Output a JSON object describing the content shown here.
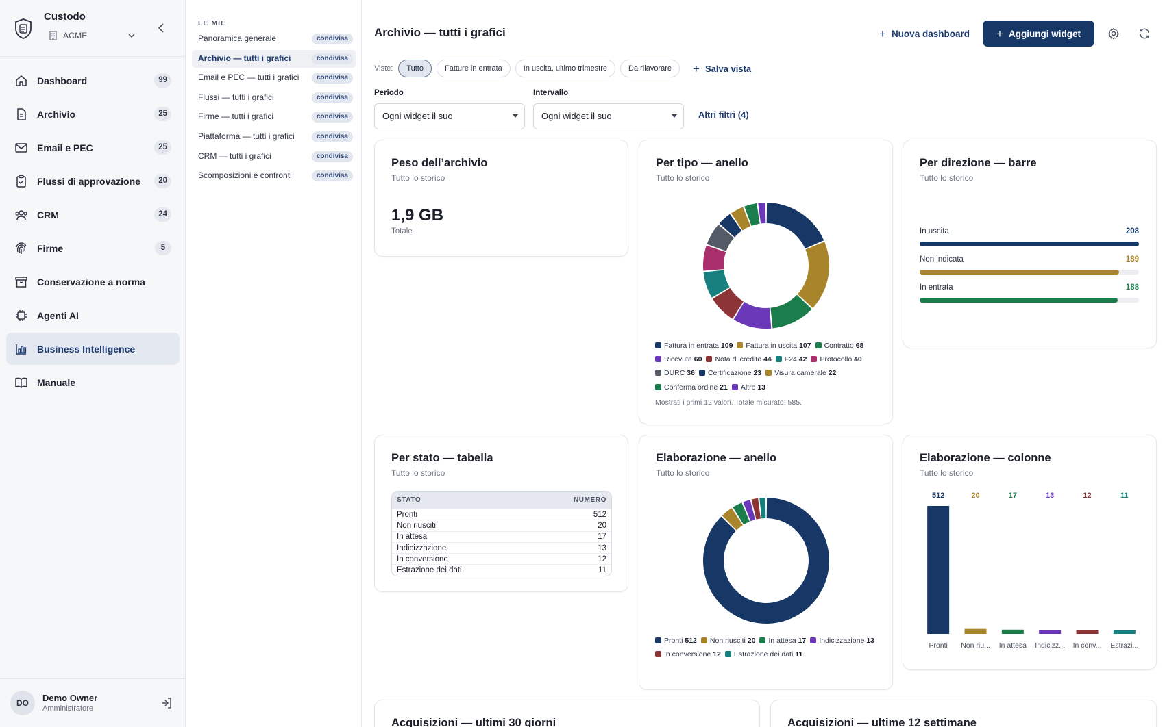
{
  "brand": {
    "name": "Custodo",
    "org": "ACME",
    "icons": {
      "logo": "shield-document-icon",
      "org": "building-icon",
      "chevron": "chevron-down-icon",
      "collapse": "chevron-left-icon"
    }
  },
  "nav": [
    {
      "id": "dashboard",
      "label": "Dashboard",
      "count": "99",
      "icon": "home-icon"
    },
    {
      "id": "archivio",
      "label": "Archivio",
      "count": "25",
      "icon": "document-icon"
    },
    {
      "id": "email-pec",
      "label": "Email e PEC",
      "count": "25",
      "icon": "mail-icon"
    },
    {
      "id": "flussi",
      "label": "Flussi di approvazione",
      "count": "20",
      "icon": "clipboard-check-icon"
    },
    {
      "id": "crm",
      "label": "CRM",
      "count": "24",
      "icon": "users-icon"
    },
    {
      "id": "firme",
      "label": "Firme",
      "count": "5",
      "icon": "fingerprint-icon"
    },
    {
      "id": "conservazione",
      "label": "Conservazione a norma",
      "count": "",
      "icon": "archive-box-icon"
    },
    {
      "id": "agenti",
      "label": "Agenti AI",
      "count": "",
      "icon": "cpu-icon"
    },
    {
      "id": "bi",
      "label": "Business Intelligence",
      "count": "",
      "icon": "bar-chart-icon",
      "active": true
    },
    {
      "id": "manuale",
      "label": "Manuale",
      "count": "",
      "icon": "book-icon"
    }
  ],
  "user": {
    "initials": "DO",
    "name": "Demo Owner",
    "role": "Amministratore",
    "logout_icon": "logout-icon"
  },
  "dashboards": {
    "section_title": "LE MIE",
    "items": [
      {
        "label": "Panoramica generale",
        "tag": "condivisa"
      },
      {
        "label": "Archivio — tutti i grafici",
        "tag": "condivisa",
        "active": true
      },
      {
        "label": "Email e PEC — tutti i grafici",
        "tag": "condivisa"
      },
      {
        "label": "Flussi — tutti i grafici",
        "tag": "condivisa"
      },
      {
        "label": "Firme — tutti i grafici",
        "tag": "condivisa"
      },
      {
        "label": "Piattaforma — tutti i grafici",
        "tag": "condivisa"
      },
      {
        "label": "CRM — tutti i grafici",
        "tag": "condivisa"
      },
      {
        "label": "Scomposizioni e confronti",
        "tag": "condivisa"
      }
    ]
  },
  "header": {
    "title": "Archivio — tutti i grafici",
    "new_dashboard": "Nuova dashboard",
    "add_widget": "Aggiungi widget",
    "settings_icon": "gear-icon",
    "refresh_icon": "refresh-icon"
  },
  "views": {
    "label": "Viste:",
    "chips": [
      "Tutto",
      "Fatture in entrata",
      "In uscita, ultimo trimestre",
      "Da rilavorare"
    ],
    "active": "Tutto",
    "save": "Salva vista"
  },
  "filters": {
    "period": {
      "label": "Periodo",
      "value": "Ogni widget il suo"
    },
    "interval": {
      "label": "Intervallo",
      "value": "Ogni widget il suo"
    },
    "more": "Altri filtri (4)"
  },
  "colors": {
    "navy": "#173767",
    "gold": "#a8842a",
    "green": "#1b7d4b",
    "purple": "#6a38b8",
    "red": "#8c3436",
    "teal": "#17807e",
    "magenta": "#a82e6c",
    "gray": "#555b66"
  },
  "widgets": {
    "peso": {
      "title": "Peso dell’archivio",
      "subtitle": "Tutto lo storico",
      "value": "1,9 GB",
      "value_label": "Totale"
    },
    "tipo": {
      "title": "Per tipo — anello",
      "subtitle": "Tutto lo storico",
      "note": "Mostrati i primi 12 valori. Totale misurato: 585.",
      "chart_data": {
        "type": "pie",
        "slices": [
          {
            "label": "Fattura in entrata",
            "value": 109,
            "color": "#173767"
          },
          {
            "label": "Fattura in uscita",
            "value": 107,
            "color": "#a8842a"
          },
          {
            "label": "Contratto",
            "value": 68,
            "color": "#1b7d4b"
          },
          {
            "label": "Ricevuta",
            "value": 60,
            "color": "#6a38b8"
          },
          {
            "label": "Nota di credito",
            "value": 44,
            "color": "#8c3436"
          },
          {
            "label": "F24",
            "value": 42,
            "color": "#17807e"
          },
          {
            "label": "Protocollo",
            "value": 40,
            "color": "#a82e6c"
          },
          {
            "label": "DURC",
            "value": 36,
            "color": "#555b66"
          },
          {
            "label": "Certificazione",
            "value": 23,
            "color": "#173767"
          },
          {
            "label": "Visura camerale",
            "value": 22,
            "color": "#a8842a"
          },
          {
            "label": "Conferma ordine",
            "value": 21,
            "color": "#1b7d4b"
          },
          {
            "label": "Altro",
            "value": 13,
            "color": "#6a38b8"
          }
        ]
      }
    },
    "direzione": {
      "title": "Per direzione — barre",
      "subtitle": "Tutto lo storico",
      "chart_data": {
        "type": "bar",
        "orientation": "horizontal",
        "categories": [
          "In uscita",
          "Non indicata",
          "In entrata"
        ],
        "values": [
          208,
          189,
          188
        ],
        "colors": [
          "#173767",
          "#a8842a",
          "#1b7d4b"
        ],
        "xlim": [
          0,
          208
        ]
      }
    },
    "stato": {
      "title": "Per stato — tabella",
      "subtitle": "Tutto lo storico",
      "chart_data": {
        "type": "table",
        "columns": [
          "STATO",
          "NUMERO"
        ],
        "rows": [
          [
            "Pronti",
            "512"
          ],
          [
            "Non riusciti",
            "20"
          ],
          [
            "In attesa",
            "17"
          ],
          [
            "Indicizzazione",
            "13"
          ],
          [
            "In conversione",
            "12"
          ],
          [
            "Estrazione dei dati",
            "11"
          ]
        ]
      }
    },
    "elab_anello": {
      "title": "Elaborazione — anello",
      "subtitle": "Tutto lo storico",
      "chart_data": {
        "type": "pie",
        "slices": [
          {
            "label": "Pronti",
            "value": 512,
            "color": "#173767"
          },
          {
            "label": "Non riusciti",
            "value": 20,
            "color": "#a8842a"
          },
          {
            "label": "In attesa",
            "value": 17,
            "color": "#1b7d4b"
          },
          {
            "label": "Indicizzazione",
            "value": 13,
            "color": "#6a38b8"
          },
          {
            "label": "In conversione",
            "value": 12,
            "color": "#8c3436"
          },
          {
            "label": "Estrazione dei dati",
            "value": 11,
            "color": "#17807e"
          }
        ]
      }
    },
    "elab_colonne": {
      "title": "Elaborazione — colonne",
      "subtitle": "Tutto lo storico",
      "chart_data": {
        "type": "bar",
        "categories": [
          "Pronti",
          "Non riu...",
          "In attesa",
          "Indicizz...",
          "In conv...",
          "Estrazi..."
        ],
        "values": [
          512,
          20,
          17,
          13,
          12,
          11
        ],
        "colors": [
          "#173767",
          "#a8842a",
          "#1b7d4b",
          "#6a38b8",
          "#8c3436",
          "#17807e"
        ],
        "ylim": [
          0,
          512
        ]
      }
    },
    "acq30": {
      "title": "Acquisizioni — ultimi 30 giorni"
    },
    "acq12": {
      "title": "Acquisizioni — ultime 12 settimane"
    }
  }
}
